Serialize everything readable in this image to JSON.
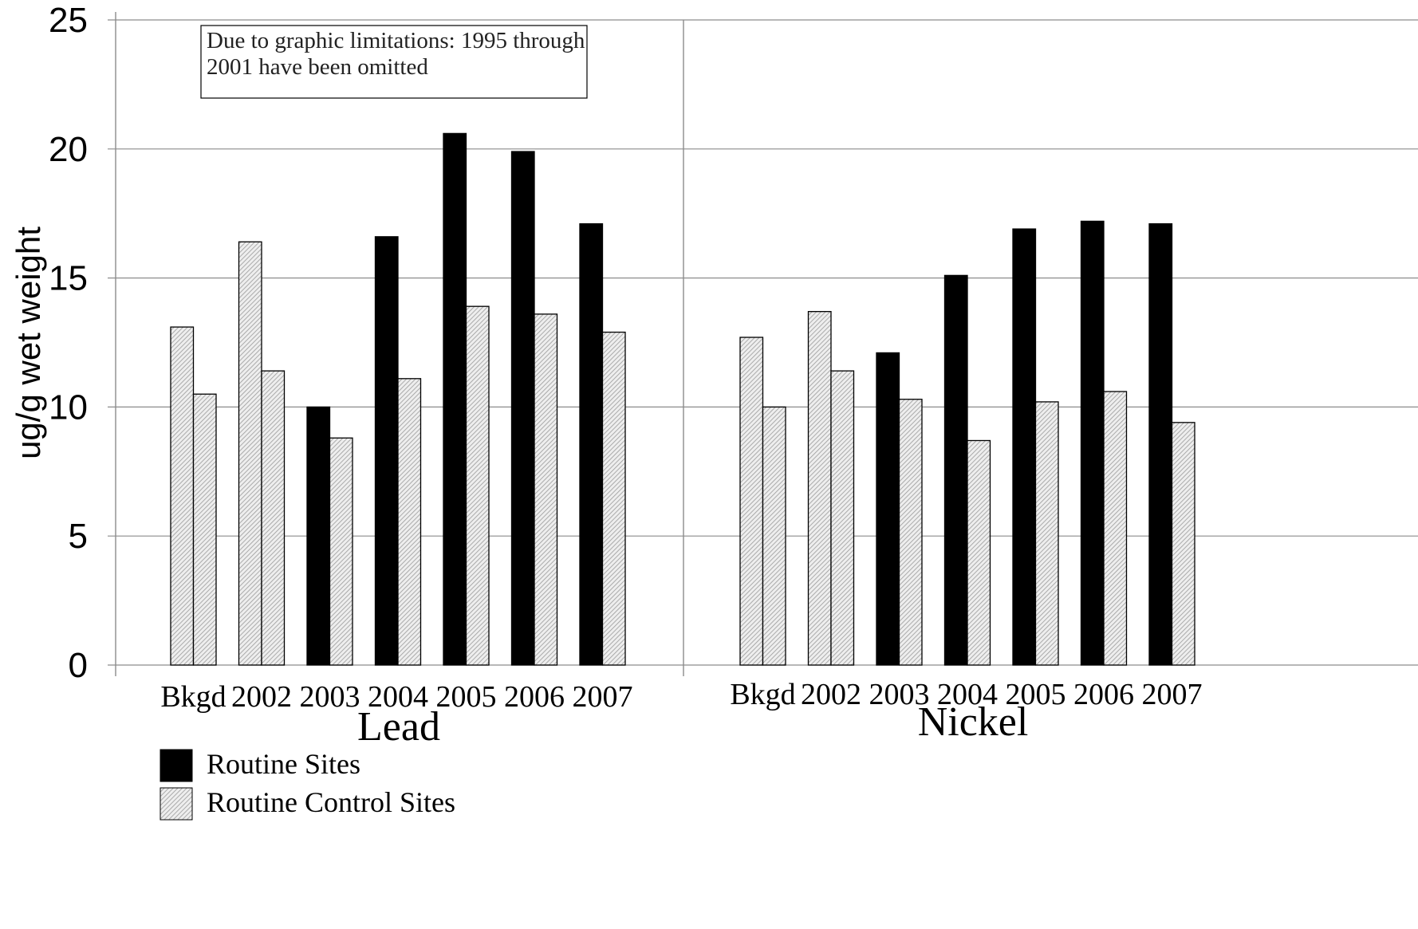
{
  "chart_data": {
    "type": "bar",
    "ylabel": "ug/g wet weight",
    "ylim": [
      0,
      25
    ],
    "yticks": [
      0,
      5,
      10,
      15,
      20,
      25
    ],
    "grid": true,
    "legend_position": "bottom-left",
    "annotation": [
      "Due to graphic limitations: 1995 through",
      "2001 have been omitted"
    ],
    "series": [
      {
        "name": "Routine Sites",
        "color": "#000000",
        "pattern": "solid"
      },
      {
        "name": "Routine Control Sites",
        "color": "#d9d9d9",
        "pattern": "hatched"
      }
    ],
    "panels": [
      {
        "label": "Lead",
        "categories": [
          "Bkgd",
          "2002",
          "2003",
          "2004",
          "2005",
          "2006",
          "2007"
        ],
        "bars": [
          [
            {
              "series": 1,
              "value": 13.1
            },
            {
              "series": 1,
              "value": 10.5
            }
          ],
          [
            {
              "series": 1,
              "value": 16.4
            },
            {
              "series": 1,
              "value": 11.4
            }
          ],
          [
            {
              "series": 0,
              "value": 10.0
            },
            {
              "series": 1,
              "value": 8.8
            }
          ],
          [
            {
              "series": 0,
              "value": 16.6
            },
            {
              "series": 1,
              "value": 11.1
            }
          ],
          [
            {
              "series": 0,
              "value": 20.6
            },
            {
              "series": 1,
              "value": 13.9
            }
          ],
          [
            {
              "series": 0,
              "value": 19.9
            },
            {
              "series": 1,
              "value": 13.6
            }
          ],
          [
            {
              "series": 0,
              "value": 17.1
            },
            {
              "series": 1,
              "value": 12.9
            }
          ]
        ]
      },
      {
        "label": "Nickel",
        "categories": [
          "Bkgd",
          "2002",
          "2003",
          "2004",
          "2005",
          "2006",
          "2007"
        ],
        "bars": [
          [
            {
              "series": 1,
              "value": 12.7
            },
            {
              "series": 1,
              "value": 10.0
            }
          ],
          [
            {
              "series": 1,
              "value": 13.7
            },
            {
              "series": 1,
              "value": 11.4
            }
          ],
          [
            {
              "series": 0,
              "value": 12.1
            },
            {
              "series": 1,
              "value": 10.3
            }
          ],
          [
            {
              "series": 0,
              "value": 15.1
            },
            {
              "series": 1,
              "value": 8.7
            }
          ],
          [
            {
              "series": 0,
              "value": 16.9
            },
            {
              "series": 1,
              "value": 10.2
            }
          ],
          [
            {
              "series": 0,
              "value": 17.2
            },
            {
              "series": 1,
              "value": 10.6
            }
          ],
          [
            {
              "series": 0,
              "value": 17.1
            },
            {
              "series": 1,
              "value": 9.4
            }
          ]
        ]
      }
    ]
  }
}
